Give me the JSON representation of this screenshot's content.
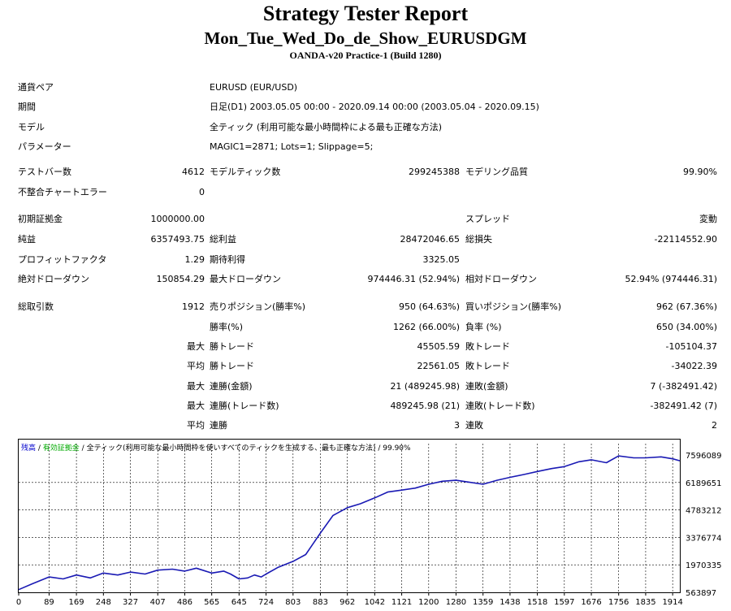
{
  "header": {
    "title": "Strategy Tester Report",
    "subtitle": "Mon_Tue_Wed_Do_de_Show_EURUSDGM",
    "server": "OANDA-v20 Practice-1 (Build 1280)"
  },
  "summary": {
    "symbol_label": "通貨ペア",
    "symbol_value": "EURUSD (EUR/USD)",
    "period_label": "期間",
    "period_value": "日足(D1) 2003.05.05 00:00 - 2020.09.14 00:00 (2003.05.04 - 2020.09.15)",
    "model_label": "モデル",
    "model_value": "全ティック (利用可能な最小時間枠による最も正確な方法)",
    "params_label": "パラメーター",
    "params_value": "MAGIC1=2871; Lots=1; Slippage=5;",
    "bars_label": "テストバー数",
    "bars_value": "4612",
    "ticks_label": "モデルティック数",
    "ticks_value": "299245388",
    "quality_label": "モデリング品質",
    "quality_value": "99.90%",
    "mismatch_label": "不整合チャートエラー",
    "mismatch_value": "0",
    "deposit_label": "初期証拠金",
    "deposit_value": "1000000.00",
    "spread_label": "スプレッド",
    "spread_value": "変動",
    "netprofit_label": "純益",
    "netprofit_value": "6357493.75",
    "grossprofit_label": "総利益",
    "grossprofit_value": "28472046.65",
    "grossloss_label": "総損失",
    "grossloss_value": "-22114552.90",
    "pf_label": "プロフィットファクタ",
    "pf_value": "1.29",
    "payoff_label": "期待利得",
    "payoff_value": "3325.05",
    "absdd_label": "絶対ドローダウン",
    "absdd_value": "150854.29",
    "maxdd_label": "最大ドローダウン",
    "maxdd_value": "974446.31 (52.94%)",
    "reldd_label": "相対ドローダウン",
    "reldd_value": "52.94% (974446.31)",
    "trades_label": "総取引数",
    "trades_value": "1912",
    "short_label": "売りポジション(勝率%)",
    "short_value": "950 (64.63%)",
    "long_label": "買いポジション(勝率%)",
    "long_value": "962 (67.36%)",
    "win_label": "勝率(%)",
    "win_value": "1262 (66.00%)",
    "loss_label": "負率 (%)",
    "loss_value": "650 (34.00%)",
    "max_label": "最大",
    "avg_label": "平均",
    "largest_win_label": "勝トレード",
    "largest_win_value": "45505.59",
    "largest_loss_label": "敗トレード",
    "largest_loss_value": "-105104.37",
    "avg_win_label": "勝トレード",
    "avg_win_value": "22561.05",
    "avg_loss_label": "敗トレード",
    "avg_loss_value": "-34022.39",
    "max_consec_wins_label": "連勝(金額)",
    "max_consec_wins_value": "21 (489245.98)",
    "max_consec_losses_label": "連敗(金額)",
    "max_consec_losses_value": "7 (-382491.42)",
    "max_consec_profit_label": "連勝(トレード数)",
    "max_consec_profit_value": "489245.98 (21)",
    "max_consec_loss_label": "連敗(トレード数)",
    "max_consec_loss_value": "-382491.42 (7)",
    "avg_consec_wins_label": "連勝",
    "avg_consec_wins_value": "3",
    "avg_consec_losses_label": "連敗",
    "avg_consec_losses_value": "2"
  },
  "legend": {
    "balance": "残高",
    "sep1": " / ",
    "equity": "有効証拠金",
    "sep2": " / ",
    "model_text": "全ティック(利用可能な最小時間枠を使いすべてのティックを生成する、最も正確な方法) / 99.90%",
    "colors": {
      "balance": "#0000cc",
      "equity": "#00aa00",
      "line": "#1a1ab4",
      "grid": "#000000"
    }
  },
  "chart_data": {
    "type": "line",
    "xlabel": "",
    "ylabel": "",
    "x_ticks": [
      "0",
      "89",
      "169",
      "248",
      "327",
      "407",
      "486",
      "565",
      "645",
      "724",
      "803",
      "883",
      "962",
      "1042",
      "1121",
      "1200",
      "1280",
      "1359",
      "1438",
      "1518",
      "1597",
      "1676",
      "1756",
      "1835",
      "1914"
    ],
    "y_ticks": [
      "7596089",
      "6189651",
      "4783212",
      "3376774",
      "1970335",
      "563897"
    ],
    "xlim": [
      0,
      1935
    ],
    "ylim": [
      563897,
      7596089
    ],
    "grid": true,
    "series": [
      {
        "x": [
          0,
          40,
          89,
          130,
          169,
          210,
          248,
          290,
          327,
          370,
          407,
          450,
          486,
          520,
          565,
          600,
          620,
          645,
          670,
          690,
          710,
          724,
          760,
          803,
          840,
          883,
          920,
          962,
          1000,
          1042,
          1080,
          1121,
          1160,
          1200,
          1240,
          1280,
          1320,
          1359,
          1400,
          1438,
          1480,
          1518,
          1560,
          1597,
          1640,
          1676,
          1720,
          1756,
          1800,
          1835,
          1880,
          1914,
          1935
        ],
        "y": [
          700000,
          1000000,
          1350000,
          1250000,
          1450000,
          1300000,
          1550000,
          1450000,
          1600000,
          1500000,
          1700000,
          1750000,
          1650000,
          1800000,
          1550000,
          1650000,
          1500000,
          1250000,
          1300000,
          1450000,
          1350000,
          1500000,
          1850000,
          2150000,
          2500000,
          3600000,
          4500000,
          4900000,
          5100000,
          5400000,
          5700000,
          5800000,
          5900000,
          6100000,
          6250000,
          6300000,
          6200000,
          6100000,
          6300000,
          6450000,
          6600000,
          6750000,
          6900000,
          7000000,
          7250000,
          7350000,
          7200000,
          7550000,
          7450000,
          7450000,
          7500000,
          7400000,
          7300000
        ]
      }
    ]
  }
}
